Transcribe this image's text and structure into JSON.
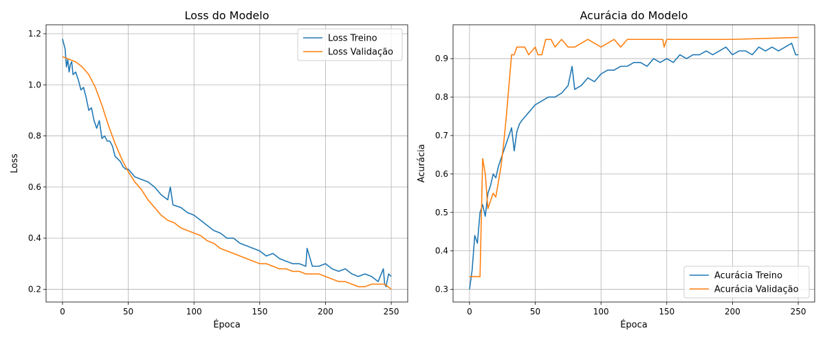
{
  "chart_data": [
    {
      "type": "line",
      "title": "Loss do Modelo",
      "xlabel": "Época",
      "ylabel": "Loss",
      "xlim": [
        -12.5,
        262.5
      ],
      "ylim": [
        0.15,
        1.235
      ],
      "xticks": [
        0,
        50,
        100,
        150,
        200,
        250
      ],
      "yticks": [
        0.2,
        0.4,
        0.6,
        0.8,
        1.0,
        1.2
      ],
      "xtick_labels": [
        "0",
        "50",
        "100",
        "150",
        "200",
        "250"
      ],
      "ytick_labels": [
        "0.2",
        "0.4",
        "0.6",
        "0.8",
        "1.0",
        "1.2"
      ],
      "grid": true,
      "legend_position": "top-right",
      "series": [
        {
          "name": "Loss Treino",
          "color": "#1f77b4",
          "x": [
            0,
            2,
            3,
            4,
            5,
            6,
            7,
            8,
            10,
            12,
            14,
            16,
            18,
            20,
            22,
            24,
            26,
            28,
            30,
            32,
            34,
            36,
            38,
            40,
            42,
            44,
            46,
            48,
            50,
            55,
            60,
            65,
            70,
            75,
            80,
            82,
            84,
            90,
            95,
            100,
            105,
            110,
            115,
            120,
            125,
            130,
            135,
            140,
            145,
            150,
            155,
            160,
            165,
            170,
            175,
            180,
            185,
            186,
            190,
            195,
            200,
            205,
            210,
            215,
            220,
            225,
            230,
            235,
            240,
            244,
            245,
            246,
            248,
            250
          ],
          "values": [
            1.18,
            1.14,
            1.07,
            1.1,
            1.05,
            1.08,
            1.09,
            1.04,
            1.05,
            1.02,
            0.98,
            0.99,
            0.95,
            0.9,
            0.91,
            0.86,
            0.83,
            0.86,
            0.79,
            0.8,
            0.78,
            0.78,
            0.76,
            0.72,
            0.71,
            0.7,
            0.68,
            0.67,
            0.67,
            0.64,
            0.63,
            0.62,
            0.6,
            0.57,
            0.55,
            0.6,
            0.53,
            0.52,
            0.5,
            0.49,
            0.47,
            0.45,
            0.43,
            0.42,
            0.4,
            0.4,
            0.38,
            0.37,
            0.36,
            0.35,
            0.33,
            0.34,
            0.32,
            0.31,
            0.3,
            0.3,
            0.29,
            0.36,
            0.29,
            0.29,
            0.3,
            0.28,
            0.27,
            0.28,
            0.26,
            0.25,
            0.26,
            0.25,
            0.23,
            0.28,
            0.22,
            0.21,
            0.26,
            0.25
          ]
        },
        {
          "name": "Loss Validação",
          "color": "#ff7f0e",
          "x": [
            0,
            5,
            10,
            15,
            20,
            25,
            30,
            35,
            40,
            45,
            50,
            55,
            60,
            65,
            70,
            75,
            80,
            85,
            90,
            95,
            100,
            105,
            110,
            115,
            120,
            125,
            130,
            135,
            140,
            145,
            150,
            155,
            160,
            165,
            170,
            175,
            180,
            185,
            190,
            195,
            200,
            205,
            210,
            215,
            220,
            225,
            230,
            235,
            240,
            245,
            250
          ],
          "values": [
            1.11,
            1.1,
            1.09,
            1.07,
            1.04,
            0.99,
            0.92,
            0.84,
            0.77,
            0.71,
            0.66,
            0.62,
            0.59,
            0.55,
            0.52,
            0.49,
            0.47,
            0.46,
            0.44,
            0.43,
            0.42,
            0.41,
            0.39,
            0.38,
            0.36,
            0.35,
            0.34,
            0.33,
            0.32,
            0.31,
            0.3,
            0.3,
            0.29,
            0.28,
            0.28,
            0.27,
            0.27,
            0.26,
            0.26,
            0.26,
            0.25,
            0.24,
            0.23,
            0.23,
            0.22,
            0.21,
            0.21,
            0.22,
            0.22,
            0.22,
            0.2
          ]
        }
      ]
    },
    {
      "type": "line",
      "title": "Acurácia do Modelo",
      "xlabel": "Época",
      "ylabel": "Acurácia",
      "xlim": [
        -12.5,
        262.5
      ],
      "ylim": [
        0.267,
        0.988
      ],
      "xticks": [
        0,
        50,
        100,
        150,
        200,
        250
      ],
      "yticks": [
        0.3,
        0.4,
        0.5,
        0.6,
        0.7,
        0.8,
        0.9
      ],
      "xtick_labels": [
        "0",
        "50",
        "100",
        "150",
        "200",
        "250"
      ],
      "ytick_labels": [
        "0.3",
        "0.4",
        "0.5",
        "0.6",
        "0.7",
        "0.8",
        "0.9"
      ],
      "grid": true,
      "legend_position": "bottom-right",
      "series": [
        {
          "name": "Acurácia Treino",
          "color": "#1f77b4",
          "x": [
            0,
            2,
            4,
            6,
            8,
            10,
            12,
            14,
            16,
            18,
            20,
            22,
            24,
            26,
            28,
            30,
            32,
            34,
            36,
            38,
            40,
            45,
            50,
            55,
            60,
            65,
            70,
            75,
            78,
            80,
            85,
            90,
            95,
            100,
            105,
            110,
            115,
            120,
            125,
            130,
            135,
            140,
            145,
            150,
            155,
            160,
            165,
            170,
            175,
            180,
            185,
            190,
            195,
            200,
            205,
            210,
            215,
            220,
            225,
            230,
            235,
            240,
            245,
            248,
            250
          ],
          "values": [
            0.3,
            0.35,
            0.44,
            0.42,
            0.5,
            0.52,
            0.49,
            0.55,
            0.57,
            0.6,
            0.59,
            0.62,
            0.64,
            0.66,
            0.68,
            0.7,
            0.72,
            0.66,
            0.71,
            0.73,
            0.74,
            0.76,
            0.78,
            0.79,
            0.8,
            0.8,
            0.81,
            0.83,
            0.88,
            0.82,
            0.83,
            0.85,
            0.84,
            0.86,
            0.87,
            0.87,
            0.88,
            0.88,
            0.89,
            0.89,
            0.88,
            0.9,
            0.89,
            0.9,
            0.89,
            0.91,
            0.9,
            0.91,
            0.91,
            0.92,
            0.91,
            0.92,
            0.93,
            0.91,
            0.92,
            0.92,
            0.91,
            0.93,
            0.92,
            0.93,
            0.92,
            0.93,
            0.94,
            0.91,
            0.91
          ]
        },
        {
          "name": "Acurácia Validação",
          "color": "#ff7f0e",
          "x": [
            0,
            5,
            8,
            10,
            12,
            14,
            16,
            18,
            20,
            22,
            24,
            26,
            28,
            30,
            32,
            34,
            36,
            40,
            42,
            45,
            50,
            52,
            55,
            58,
            62,
            65,
            70,
            75,
            80,
            90,
            100,
            110,
            115,
            120,
            125,
            130,
            140,
            147,
            148,
            150,
            160,
            200,
            250
          ],
          "values": [
            0.333,
            0.333,
            0.333,
            0.64,
            0.6,
            0.51,
            0.53,
            0.55,
            0.54,
            0.58,
            0.62,
            0.68,
            0.75,
            0.83,
            0.91,
            0.91,
            0.93,
            0.93,
            0.93,
            0.91,
            0.93,
            0.91,
            0.91,
            0.95,
            0.95,
            0.93,
            0.95,
            0.93,
            0.93,
            0.95,
            0.93,
            0.95,
            0.93,
            0.95,
            0.95,
            0.95,
            0.95,
            0.95,
            0.93,
            0.95,
            0.95,
            0.95,
            0.955
          ]
        }
      ]
    }
  ]
}
